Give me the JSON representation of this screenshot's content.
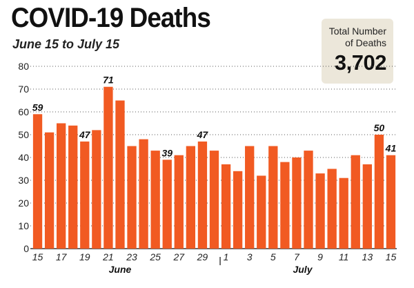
{
  "header": {
    "title": "COVID-19 Deaths",
    "subtitle": "June 15 to July 15"
  },
  "total": {
    "label_line1": "Total Number",
    "label_line2": "of Deaths",
    "value": "3,702"
  },
  "colors": {
    "bar": "#f15a22",
    "background": "#ffffff",
    "box": "#ece7da"
  },
  "chart_data": {
    "type": "bar",
    "title": "COVID-19 Deaths",
    "subtitle": "June 15 to July 15",
    "xlabel": "",
    "ylabel": "",
    "ylim": [
      0,
      80
    ],
    "yticks": [
      0,
      10,
      20,
      30,
      40,
      50,
      60,
      70,
      80
    ],
    "grid": "dotted horizontal",
    "categories": [
      "15",
      "16",
      "17",
      "18",
      "19",
      "20",
      "21",
      "22",
      "23",
      "24",
      "25",
      "26",
      "27",
      "28",
      "29",
      "30",
      "1",
      "2",
      "3",
      "4",
      "5",
      "6",
      "7",
      "8",
      "9",
      "10",
      "11",
      "12",
      "13",
      "14",
      "15"
    ],
    "values": [
      59,
      51,
      55,
      54,
      47,
      52,
      71,
      65,
      45,
      48,
      43,
      39,
      41,
      45,
      47,
      43,
      37,
      34,
      45,
      32,
      45,
      38,
      40,
      43,
      33,
      35,
      31,
      41,
      37,
      50,
      41
    ],
    "xtick_labels": [
      {
        "index": 0,
        "text": "15"
      },
      {
        "index": 2,
        "text": "17"
      },
      {
        "index": 4,
        "text": "19"
      },
      {
        "index": 6,
        "text": "21"
      },
      {
        "index": 8,
        "text": "23"
      },
      {
        "index": 10,
        "text": "25"
      },
      {
        "index": 12,
        "text": "27"
      },
      {
        "index": 14,
        "text": "29"
      },
      {
        "index": 16,
        "text": "1"
      },
      {
        "index": 18,
        "text": "3"
      },
      {
        "index": 20,
        "text": "5"
      },
      {
        "index": 22,
        "text": "7"
      },
      {
        "index": 24,
        "text": "9"
      },
      {
        "index": 26,
        "text": "11"
      },
      {
        "index": 28,
        "text": "13"
      },
      {
        "index": 30,
        "text": "15"
      }
    ],
    "data_labels": [
      {
        "index": 0,
        "text": "59"
      },
      {
        "index": 4,
        "text": "47"
      },
      {
        "index": 6,
        "text": "71"
      },
      {
        "index": 11,
        "text": "39"
      },
      {
        "index": 14,
        "text": "47"
      },
      {
        "index": 29,
        "text": "50"
      },
      {
        "index": 30,
        "text": "41"
      }
    ],
    "month_labels": [
      {
        "index": 7,
        "text": "June"
      },
      {
        "index": 22.5,
        "text": "July"
      }
    ],
    "month_divider_index": 15.5
  }
}
